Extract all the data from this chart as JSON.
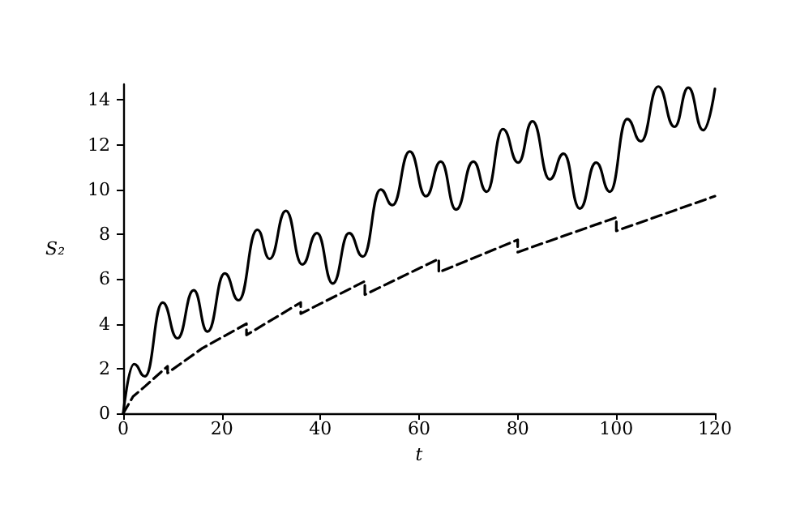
{
  "chart_data": {
    "type": "line",
    "xlabel": "t",
    "ylabel": "S₂",
    "xlim": [
      0,
      120
    ],
    "xticks": [
      0,
      20,
      40,
      60,
      80,
      100,
      120
    ],
    "ylim": [
      0,
      14.7
    ],
    "yticks": [
      0,
      2,
      4,
      6,
      8,
      10,
      12,
      14
    ],
    "grid": false,
    "marker": "none",
    "series": [
      {
        "color": "#000000",
        "line_style": "solid",
        "x": [
          0,
          2.2,
          4.4,
          8.0,
          11.0,
          14.3,
          17.1,
          20.6,
          23.4,
          27.2,
          29.7,
          33.0,
          36.3,
          39.3,
          42.5,
          45.8,
          48.6,
          52.2,
          54.6,
          58.1,
          61.4,
          64.4,
          67.5,
          71.0,
          73.7,
          77.0,
          80.1,
          83.0,
          86.5,
          89.3,
          92.6,
          95.9,
          98.7,
          102.2,
          105.0,
          108.5,
          111.8,
          114.6,
          117.6,
          120
        ],
        "values": [
          0,
          2.2,
          1.65,
          4.95,
          3.35,
          5.5,
          3.65,
          6.25,
          5.05,
          8.2,
          6.9,
          9.05,
          6.65,
          8.05,
          5.8,
          8.05,
          7.0,
          10.0,
          9.3,
          11.7,
          9.7,
          11.25,
          9.1,
          11.25,
          9.9,
          12.7,
          11.2,
          13.05,
          10.45,
          11.6,
          9.15,
          11.2,
          9.9,
          13.15,
          12.15,
          14.6,
          12.8,
          14.55,
          12.65,
          14.5
        ]
      },
      {
        "color": "#000000",
        "line_style": "dashed",
        "x": [
          0,
          2,
          4.4,
          9,
          9,
          16,
          25,
          25,
          36,
          36,
          49,
          49,
          64,
          64,
          80,
          80,
          100,
          100,
          120
        ],
        "values": [
          0,
          0.75,
          1.2,
          2.1,
          1.8,
          2.9,
          4.0,
          3.5,
          4.95,
          4.45,
          5.9,
          5.3,
          6.9,
          6.3,
          7.75,
          7.2,
          8.75,
          8.15,
          9.7
        ]
      }
    ]
  }
}
